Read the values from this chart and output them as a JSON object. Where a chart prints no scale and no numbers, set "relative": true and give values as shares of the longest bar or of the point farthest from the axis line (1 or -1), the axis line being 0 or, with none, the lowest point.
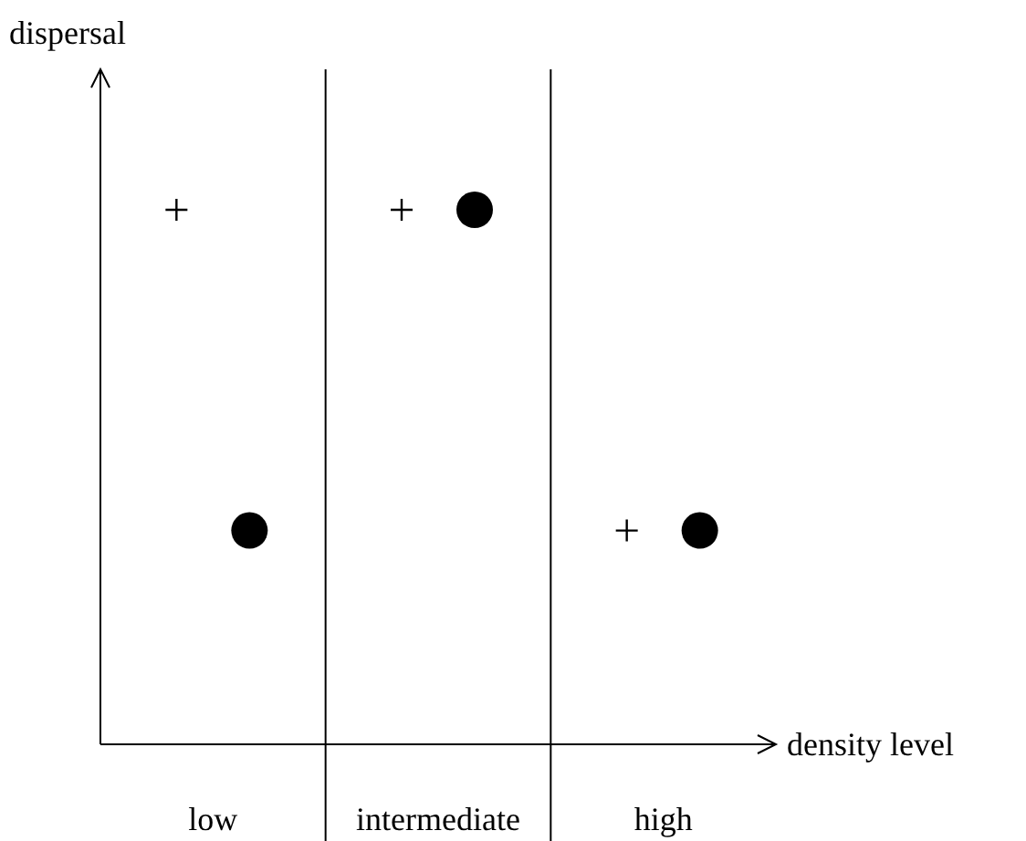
{
  "chart_data": {
    "type": "scatter",
    "xlabel": "density level",
    "ylabel": "dispersal",
    "categories": [
      "low",
      "intermediate",
      "high"
    ],
    "relative": true,
    "grid": "x",
    "tick_labels": "x",
    "series": [
      {
        "marker": "cross",
        "color": "#000000",
        "values": [
          1,
          1,
          0.4
        ]
      },
      {
        "marker": "circle",
        "color": "#000000",
        "values": [
          0.4,
          1,
          0.4
        ]
      }
    ]
  }
}
